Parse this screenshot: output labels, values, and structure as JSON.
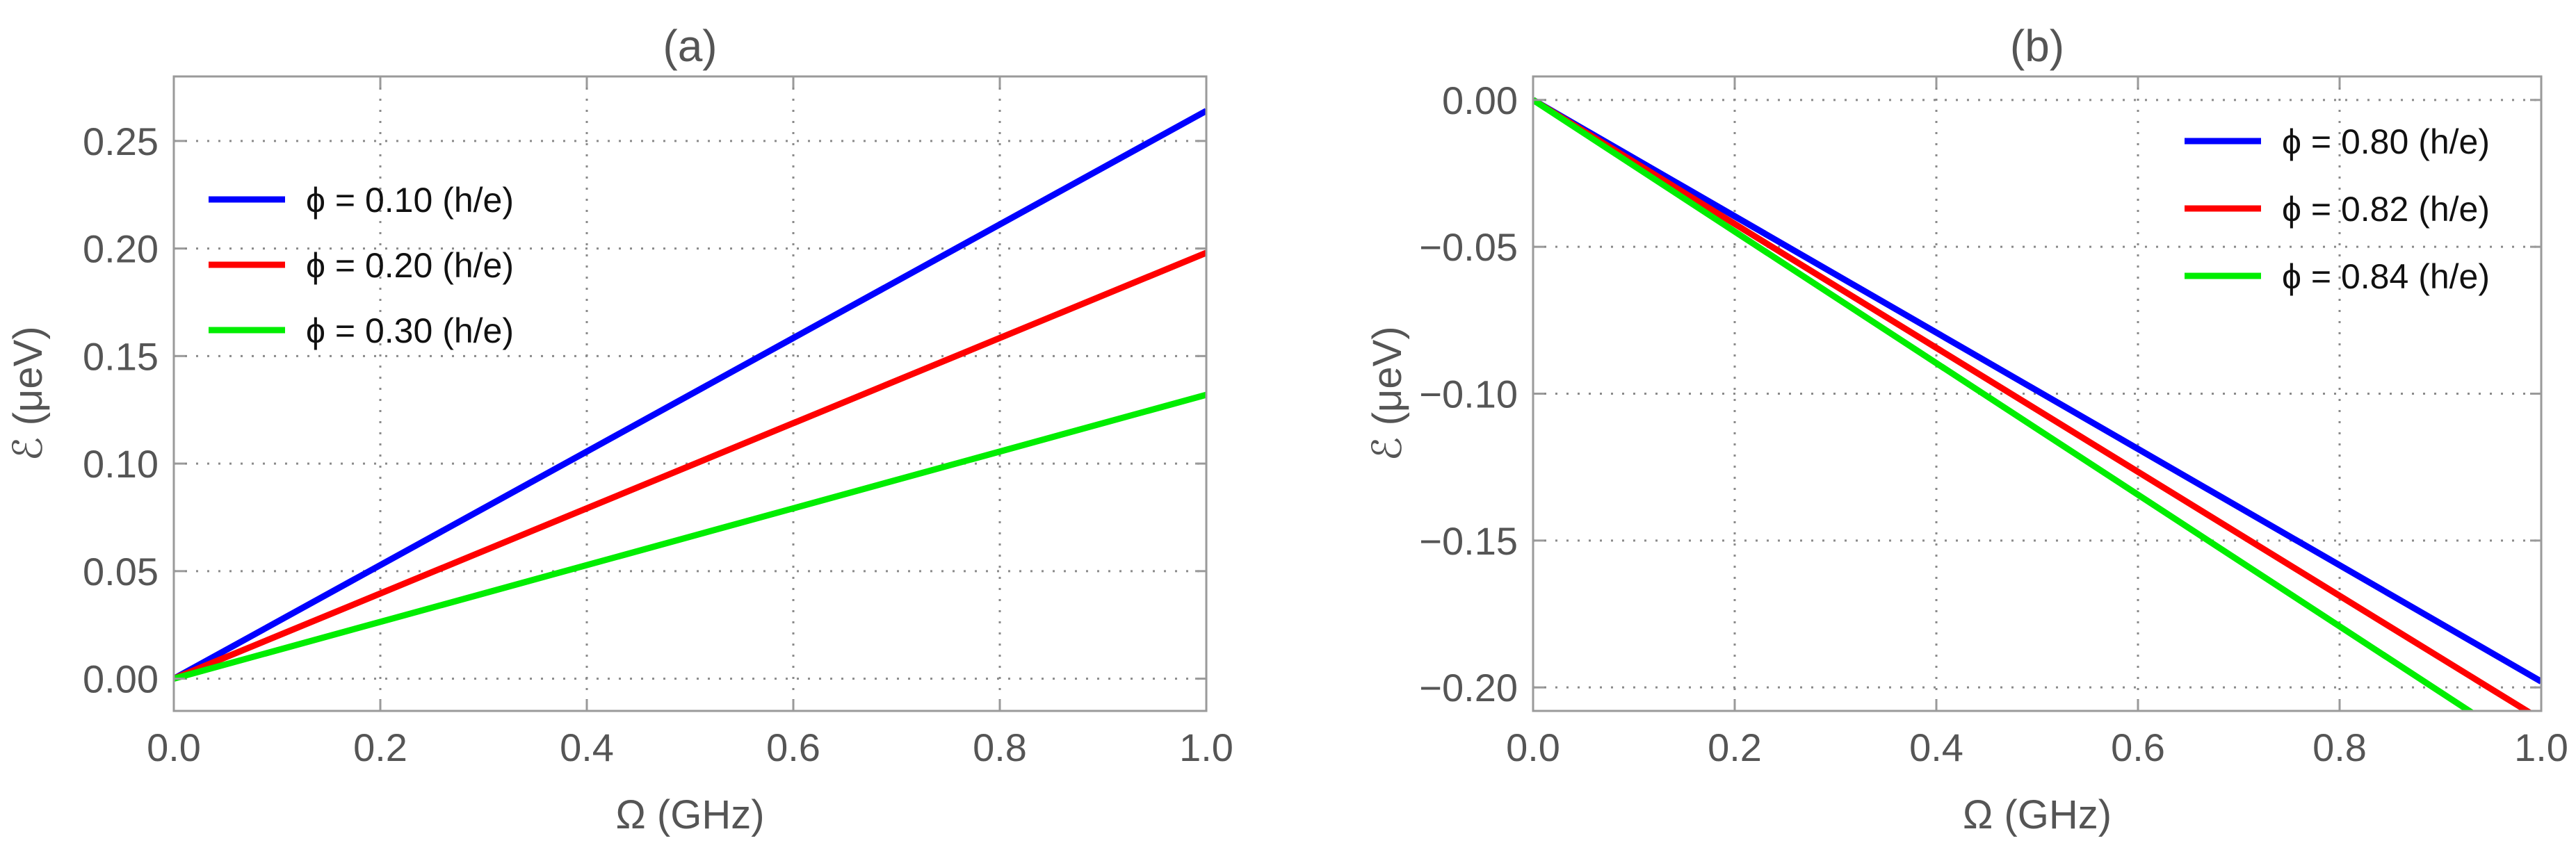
{
  "chart_data": [
    {
      "type": "line",
      "title": "(a)",
      "xlabel": "Ω (GHz)",
      "ylabel": "ℰ (μeV)",
      "xlim": [
        0,
        1
      ],
      "ylim": [
        -0.015,
        0.28
      ],
      "xticks": [
        0,
        0.2,
        0.4,
        0.6,
        0.8,
        1.0
      ],
      "yticks": [
        0,
        0.05,
        0.1,
        0.15,
        0.2,
        0.25
      ],
      "xtick_labels": [
        "0.0",
        "0.2",
        "0.4",
        "0.6",
        "0.8",
        "1.0"
      ],
      "ytick_labels": [
        "0.00",
        "0.05",
        "0.10",
        "0.15",
        "0.20",
        "0.25"
      ],
      "grid": true,
      "legend_position": "upper-left",
      "series": [
        {
          "name": "ϕ = 0.10 (h/e)",
          "color": "#0000ff",
          "x": [
            0,
            1
          ],
          "y": [
            0,
            0.264
          ]
        },
        {
          "name": "ϕ = 0.20 (h/e)",
          "color": "#ff0000",
          "x": [
            0,
            1
          ],
          "y": [
            0,
            0.198
          ]
        },
        {
          "name": "ϕ = 0.30 (h/e)",
          "color": "#00ee00",
          "x": [
            0,
            1
          ],
          "y": [
            0,
            0.132
          ]
        }
      ]
    },
    {
      "type": "line",
      "title": "(b)",
      "xlabel": "Ω (GHz)",
      "ylabel": "ℰ (μeV)",
      "xlim": [
        0,
        1
      ],
      "ylim": [
        -0.208,
        0.008
      ],
      "xticks": [
        0,
        0.2,
        0.4,
        0.6,
        0.8,
        1.0
      ],
      "yticks": [
        0,
        -0.05,
        -0.1,
        -0.15,
        -0.2
      ],
      "xtick_labels": [
        "0.0",
        "0.2",
        "0.4",
        "0.6",
        "0.8",
        "1.0"
      ],
      "ytick_labels": [
        "0.00",
        "−0.05",
        "−0.10",
        "−0.15",
        "−0.20"
      ],
      "grid": true,
      "legend_position": "upper-right",
      "series": [
        {
          "name": "ϕ = 0.80 (h/e)",
          "color": "#0000ff",
          "x": [
            0,
            1
          ],
          "y": [
            0,
            -0.198
          ]
        },
        {
          "name": "ϕ = 0.82 (h/e)",
          "color": "#ff0000",
          "x": [
            0,
            1
          ],
          "y": [
            0,
            -0.211
          ]
        },
        {
          "name": "ϕ = 0.84 (h/e)",
          "color": "#00ee00",
          "x": [
            0,
            1
          ],
          "y": [
            0,
            -0.224
          ]
        }
      ]
    }
  ]
}
